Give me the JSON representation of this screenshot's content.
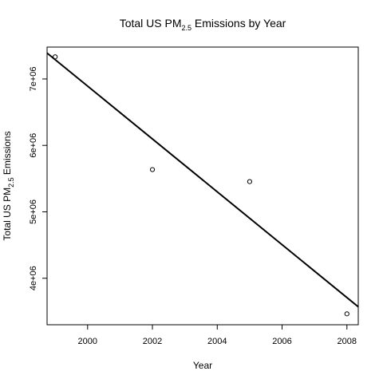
{
  "chart_data": {
    "type": "scatter",
    "title": {
      "prefix": "Total US  PM",
      "subscript": "2.5",
      "suffix": " Emissions by Year"
    },
    "xlabel": "Year",
    "ylabel": {
      "prefix": "Total US  PM",
      "subscript": "2.5",
      "suffix": " Emissions"
    },
    "xlim": [
      1998.75,
      2008.35
    ],
    "ylim": [
      3300000,
      7480000
    ],
    "x_ticks": [
      2000,
      2002,
      2004,
      2006,
      2008
    ],
    "x_tick_labels": [
      "2000",
      "2002",
      "2004",
      "2006",
      "2008"
    ],
    "y_ticks": [
      4000000,
      5000000,
      6000000,
      7000000
    ],
    "y_tick_labels": [
      "4e+06",
      "5e+06",
      "6e+06",
      "7e+06"
    ],
    "points": [
      {
        "x": 1999,
        "y": 7332967
      },
      {
        "x": 2002,
        "y": 5635780
      },
      {
        "x": 2005,
        "y": 5454703
      },
      {
        "x": 2008,
        "y": 3464206
      }
    ],
    "regression_line": {
      "x": [
        1998.75,
        2008.35
      ],
      "y": [
        7390000,
        3570000
      ]
    },
    "grid": false,
    "legend": "none"
  }
}
